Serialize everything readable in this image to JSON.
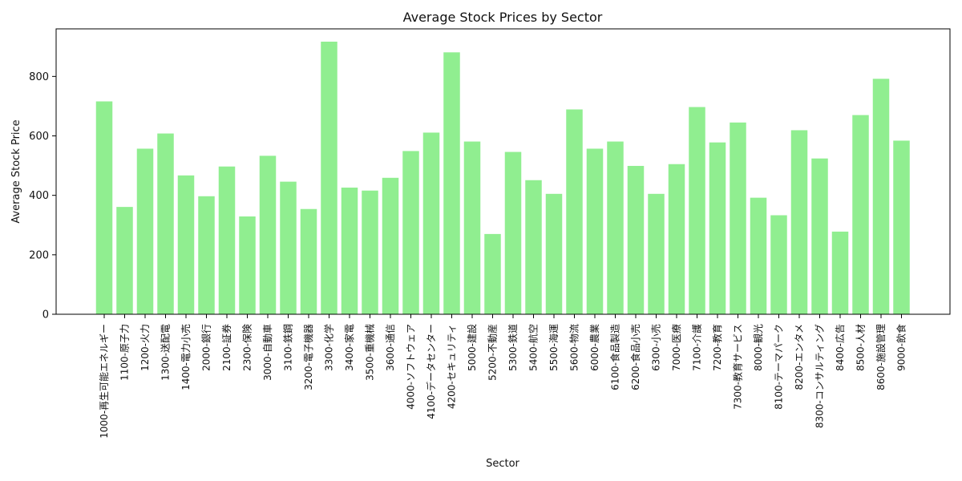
{
  "chart_data": {
    "type": "bar",
    "title": "Average Stock Prices by Sector",
    "xlabel": "Sector",
    "ylabel": "Average Stock Price",
    "ylim": [
      0,
      960
    ],
    "yticks": [
      0,
      200,
      400,
      600,
      800
    ],
    "grid": false,
    "bar_color": "#90ee90",
    "categories": [
      "1000-再生可能エネルギー",
      "1100-原子力",
      "1200-火力",
      "1300-送配電",
      "1400-電力小売",
      "2000-銀行",
      "2100-証券",
      "2300-保険",
      "3000-自動車",
      "3100-鉄鋼",
      "3200-電子機器",
      "3300-化学",
      "3400-家電",
      "3500-重機械",
      "3600-通信",
      "4000-ソフトウェア",
      "4100-データセンター",
      "4200-セキュリティ",
      "5000-建設",
      "5200-不動産",
      "5300-鉄道",
      "5400-航空",
      "5500-海運",
      "5600-物流",
      "6000-農業",
      "6100-食品製造",
      "6200-食品小売",
      "6300-小売",
      "7000-医療",
      "7100-介護",
      "7200-教育",
      "7300-教育サービス",
      "8000-観光",
      "8100-テーマパーク",
      "8200-エンタメ",
      "8300-コンサルティング",
      "8400-広告",
      "8500-人材",
      "8600-施設管理",
      "9000-飲食"
    ],
    "values": [
      716,
      361,
      557,
      608,
      467,
      397,
      497,
      329,
      533,
      446,
      354,
      917,
      426,
      416,
      459,
      549,
      611,
      881,
      581,
      270,
      546,
      451,
      405,
      689,
      557,
      581,
      499,
      405,
      505,
      697,
      578,
      645,
      392,
      333,
      619,
      524,
      278,
      670,
      792,
      584
    ]
  }
}
